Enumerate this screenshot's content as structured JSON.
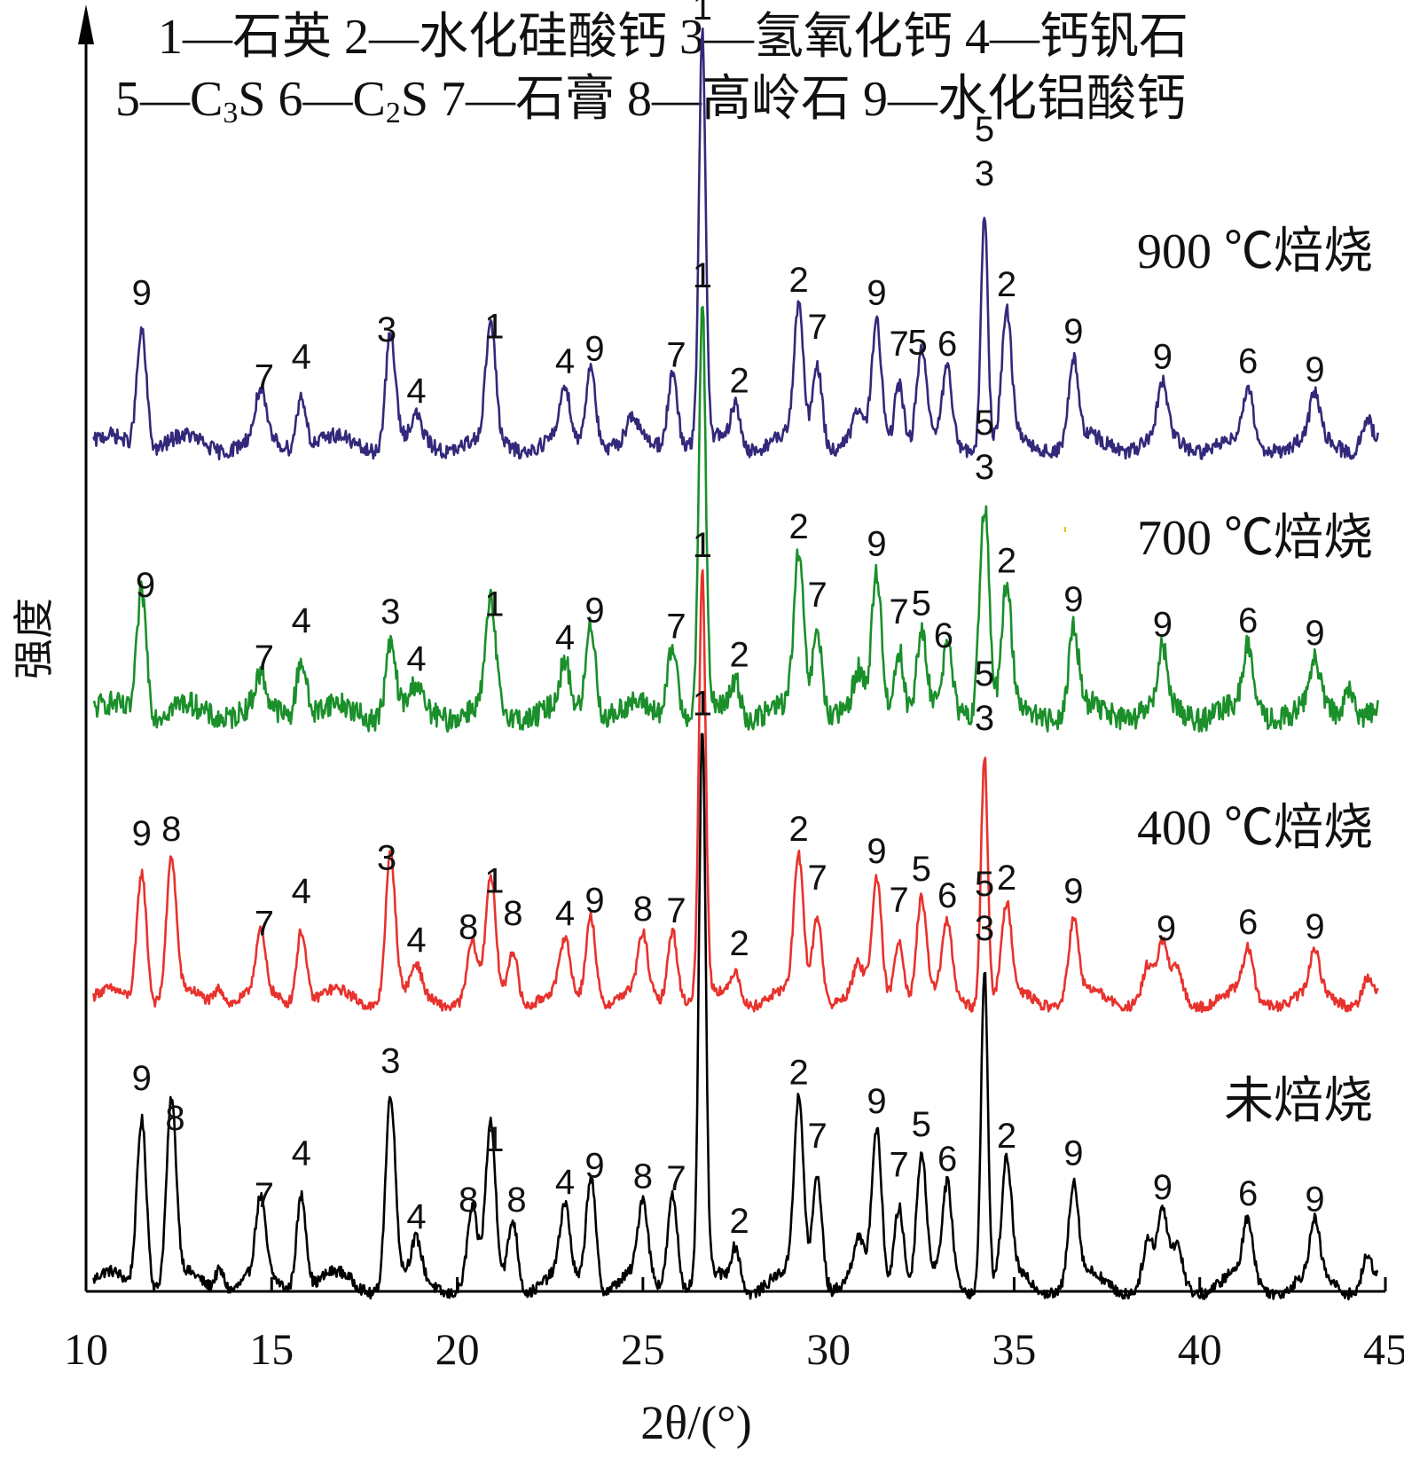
{
  "chart_data": {
    "type": "line",
    "legend_line1": [
      "1—石英",
      "2—水化硅酸钙",
      "3—氢氧化钙",
      "4—钙钒石"
    ],
    "legend_line2_parts": [
      {
        "num": "5—C",
        "sub": "3",
        "tail": "S"
      },
      {
        "num": "6—C",
        "sub": "2",
        "tail": "S"
      }
    ],
    "legend_line2_rest": [
      "7—石膏",
      "8—高岭石",
      "9—水化铝酸钙"
    ],
    "xlabel": "2θ/(°)",
    "ylabel": "强度",
    "xlim": [
      10,
      45
    ],
    "xticks": [
      "10",
      "15",
      "20",
      "25",
      "30",
      "35",
      "40",
      "45"
    ],
    "y_axis_ticks": false,
    "series": [
      {
        "name": "未焙烧",
        "color": "#000000",
        "peaks": [
          {
            "x": 11.5,
            "h": 0.3
          },
          {
            "x": 12.3,
            "h": 0.31
          },
          {
            "x": 13.6,
            "h": 0.04
          },
          {
            "x": 14.7,
            "h": 0.13
          },
          {
            "x": 15.8,
            "h": 0.17
          },
          {
            "x": 18.2,
            "h": 0.33
          },
          {
            "x": 18.9,
            "h": 0.06
          },
          {
            "x": 20.4,
            "h": 0.12
          },
          {
            "x": 20.9,
            "h": 0.26
          },
          {
            "x": 21.5,
            "h": 0.12
          },
          {
            "x": 22.9,
            "h": 0.12
          },
          {
            "x": 23.6,
            "h": 0.2
          },
          {
            "x": 25.0,
            "h": 0.13
          },
          {
            "x": 25.8,
            "h": 0.17
          },
          {
            "x": 26.6,
            "h": 0.95
          },
          {
            "x": 27.5,
            "h": 0.07
          },
          {
            "x": 29.2,
            "h": 0.31
          },
          {
            "x": 29.7,
            "h": 0.2
          },
          {
            "x": 30.8,
            "h": 0.06
          },
          {
            "x": 31.3,
            "h": 0.26
          },
          {
            "x": 31.9,
            "h": 0.15
          },
          {
            "x": 32.5,
            "h": 0.22
          },
          {
            "x": 33.2,
            "h": 0.16
          },
          {
            "x": 34.2,
            "h": 0.56
          },
          {
            "x": 34.8,
            "h": 0.2
          },
          {
            "x": 36.6,
            "h": 0.17
          },
          {
            "x": 38.6,
            "h": 0.07
          },
          {
            "x": 39.0,
            "h": 0.11
          },
          {
            "x": 39.4,
            "h": 0.06
          },
          {
            "x": 41.3,
            "h": 0.1
          },
          {
            "x": 43.1,
            "h": 0.09
          },
          {
            "x": 44.5,
            "h": 0.05
          }
        ],
        "noise": 0.01,
        "series_label": "未焙烧",
        "peak_labels": [
          {
            "x": 11.5,
            "t": "9"
          },
          {
            "x": 12.4,
            "t": "8"
          },
          {
            "x": 14.8,
            "t": "7"
          },
          {
            "x": 15.8,
            "t": "4"
          },
          {
            "x": 18.2,
            "t": "3"
          },
          {
            "x": 18.9,
            "t": "4"
          },
          {
            "x": 20.3,
            "t": "8"
          },
          {
            "x": 21.0,
            "t": "1"
          },
          {
            "x": 21.6,
            "t": "8"
          },
          {
            "x": 22.9,
            "t": "4"
          },
          {
            "x": 23.7,
            "t": "9"
          },
          {
            "x": 25.0,
            "t": "8"
          },
          {
            "x": 25.9,
            "t": "7"
          },
          {
            "x": 26.6,
            "t": "1"
          },
          {
            "x": 27.6,
            "t": "2"
          },
          {
            "x": 29.2,
            "t": "2"
          },
          {
            "x": 29.7,
            "t": "7"
          },
          {
            "x": 31.3,
            "t": "9"
          },
          {
            "x": 31.9,
            "t": "7"
          },
          {
            "x": 32.5,
            "t": "5"
          },
          {
            "x": 33.2,
            "t": "6"
          },
          {
            "x": 34.2,
            "t": "5"
          },
          {
            "x": 34.2,
            "t": "3"
          },
          {
            "x": 34.8,
            "t": "2"
          },
          {
            "x": 36.6,
            "t": "9"
          },
          {
            "x": 39.0,
            "t": "9"
          },
          {
            "x": 41.3,
            "t": "6"
          },
          {
            "x": 43.1,
            "t": "9"
          }
        ]
      },
      {
        "name": "400 ℃焙烧",
        "color": "#e8322d",
        "peaks": [
          {
            "x": 11.5,
            "h": 0.3
          },
          {
            "x": 12.3,
            "h": 0.31
          },
          {
            "x": 13.6,
            "h": 0.04
          },
          {
            "x": 14.7,
            "h": 0.13
          },
          {
            "x": 15.8,
            "h": 0.17
          },
          {
            "x": 18.2,
            "h": 0.33
          },
          {
            "x": 18.9,
            "h": 0.06
          },
          {
            "x": 20.4,
            "h": 0.12
          },
          {
            "x": 20.9,
            "h": 0.26
          },
          {
            "x": 21.5,
            "h": 0.12
          },
          {
            "x": 22.9,
            "h": 0.12
          },
          {
            "x": 23.6,
            "h": 0.2
          },
          {
            "x": 25.0,
            "h": 0.13
          },
          {
            "x": 25.8,
            "h": 0.17
          },
          {
            "x": 26.6,
            "h": 0.95
          },
          {
            "x": 27.5,
            "h": 0.07
          },
          {
            "x": 29.2,
            "h": 0.31
          },
          {
            "x": 29.7,
            "h": 0.2
          },
          {
            "x": 30.8,
            "h": 0.06
          },
          {
            "x": 31.3,
            "h": 0.26
          },
          {
            "x": 31.9,
            "h": 0.15
          },
          {
            "x": 32.5,
            "h": 0.22
          },
          {
            "x": 33.2,
            "h": 0.16
          },
          {
            "x": 34.2,
            "h": 0.56
          },
          {
            "x": 34.8,
            "h": 0.2
          },
          {
            "x": 36.6,
            "h": 0.17
          },
          {
            "x": 38.6,
            "h": 0.07
          },
          {
            "x": 39.0,
            "h": 0.11
          },
          {
            "x": 39.4,
            "h": 0.06
          },
          {
            "x": 41.3,
            "h": 0.1
          },
          {
            "x": 43.1,
            "h": 0.09
          },
          {
            "x": 44.5,
            "h": 0.05
          }
        ],
        "noise": 0.012,
        "series_label": "400 ℃焙烧",
        "peak_labels": [
          {
            "x": 11.5,
            "t": "9"
          },
          {
            "x": 12.3,
            "t": "8"
          },
          {
            "x": 14.8,
            "t": "7"
          },
          {
            "x": 15.8,
            "t": "4"
          },
          {
            "x": 18.1,
            "t": "3"
          },
          {
            "x": 18.9,
            "t": "4"
          },
          {
            "x": 20.3,
            "t": "8"
          },
          {
            "x": 21.0,
            "t": "1"
          },
          {
            "x": 21.5,
            "t": "8"
          },
          {
            "x": 22.9,
            "t": "4"
          },
          {
            "x": 23.7,
            "t": "9"
          },
          {
            "x": 25.0,
            "t": "8"
          },
          {
            "x": 25.9,
            "t": "7"
          },
          {
            "x": 26.6,
            "t": "1"
          },
          {
            "x": 27.6,
            "t": "2"
          },
          {
            "x": 29.2,
            "t": "2"
          },
          {
            "x": 29.7,
            "t": "7"
          },
          {
            "x": 31.3,
            "t": "9"
          },
          {
            "x": 31.9,
            "t": "7"
          },
          {
            "x": 32.5,
            "t": "5"
          },
          {
            "x": 33.2,
            "t": "6"
          },
          {
            "x": 34.2,
            "t": "5"
          },
          {
            "x": 34.2,
            "t": "3"
          },
          {
            "x": 34.8,
            "t": "2"
          },
          {
            "x": 36.6,
            "t": "9"
          },
          {
            "x": 39.1,
            "t": "9"
          },
          {
            "x": 41.3,
            "t": "6"
          },
          {
            "x": 43.1,
            "t": "9"
          }
        ]
      },
      {
        "name": "700 ℃焙烧",
        "color": "#1a8f2a",
        "peaks": [
          {
            "x": 11.5,
            "h": 0.3
          },
          {
            "x": 14.7,
            "h": 0.07
          },
          {
            "x": 15.8,
            "h": 0.14
          },
          {
            "x": 18.2,
            "h": 0.16
          },
          {
            "x": 18.9,
            "h": 0.05
          },
          {
            "x": 20.9,
            "h": 0.24
          },
          {
            "x": 22.9,
            "h": 0.1
          },
          {
            "x": 23.6,
            "h": 0.22
          },
          {
            "x": 25.8,
            "h": 0.17
          },
          {
            "x": 26.6,
            "h": 0.95
          },
          {
            "x": 27.5,
            "h": 0.08
          },
          {
            "x": 29.2,
            "h": 0.36
          },
          {
            "x": 29.7,
            "h": 0.2
          },
          {
            "x": 30.8,
            "h": 0.08
          },
          {
            "x": 31.3,
            "h": 0.32
          },
          {
            "x": 31.9,
            "h": 0.16
          },
          {
            "x": 32.5,
            "h": 0.18
          },
          {
            "x": 33.2,
            "h": 0.14
          },
          {
            "x": 34.2,
            "h": 0.5
          },
          {
            "x": 34.8,
            "h": 0.28
          },
          {
            "x": 36.6,
            "h": 0.19
          },
          {
            "x": 39.0,
            "h": 0.13
          },
          {
            "x": 41.3,
            "h": 0.14
          },
          {
            "x": 43.1,
            "h": 0.11
          },
          {
            "x": 44.0,
            "h": 0.07
          }
        ],
        "noise": 0.028,
        "series_label": "700 ℃焙烧",
        "peak_labels": [
          {
            "x": 11.6,
            "t": "9"
          },
          {
            "x": 14.8,
            "t": "7"
          },
          {
            "x": 15.8,
            "t": "4"
          },
          {
            "x": 18.2,
            "t": "3"
          },
          {
            "x": 18.9,
            "t": "4"
          },
          {
            "x": 21.0,
            "t": "1"
          },
          {
            "x": 22.9,
            "t": "4"
          },
          {
            "x": 23.7,
            "t": "9"
          },
          {
            "x": 25.9,
            "t": "7"
          },
          {
            "x": 26.6,
            "t": "1"
          },
          {
            "x": 27.6,
            "t": "2"
          },
          {
            "x": 29.2,
            "t": "2"
          },
          {
            "x": 29.7,
            "t": "7"
          },
          {
            "x": 31.3,
            "t": "9"
          },
          {
            "x": 31.9,
            "t": "7"
          },
          {
            "x": 32.5,
            "t": "5"
          },
          {
            "x": 33.1,
            "t": "6"
          },
          {
            "x": 34.2,
            "t": "5"
          },
          {
            "x": 34.2,
            "t": "3"
          },
          {
            "x": 34.8,
            "t": "2"
          },
          {
            "x": 36.6,
            "t": "9"
          },
          {
            "x": 39.0,
            "t": "9"
          },
          {
            "x": 41.3,
            "t": "6"
          },
          {
            "x": 43.1,
            "t": "9"
          }
        ]
      },
      {
        "name": "900 ℃焙烧",
        "color": "#33297a",
        "peaks": [
          {
            "x": 11.5,
            "h": 0.28
          },
          {
            "x": 14.7,
            "h": 0.11
          },
          {
            "x": 15.8,
            "h": 0.13
          },
          {
            "x": 18.2,
            "h": 0.26
          },
          {
            "x": 18.9,
            "h": 0.05
          },
          {
            "x": 20.9,
            "h": 0.27
          },
          {
            "x": 22.9,
            "h": 0.12
          },
          {
            "x": 23.6,
            "h": 0.2
          },
          {
            "x": 24.7,
            "h": 0.05
          },
          {
            "x": 25.8,
            "h": 0.18
          },
          {
            "x": 26.6,
            "h": 0.95
          },
          {
            "x": 27.5,
            "h": 0.1
          },
          {
            "x": 29.2,
            "h": 0.31
          },
          {
            "x": 29.7,
            "h": 0.2
          },
          {
            "x": 30.8,
            "h": 0.06
          },
          {
            "x": 31.3,
            "h": 0.28
          },
          {
            "x": 31.9,
            "h": 0.16
          },
          {
            "x": 32.5,
            "h": 0.22
          },
          {
            "x": 33.2,
            "h": 0.16
          },
          {
            "x": 34.2,
            "h": 0.56
          },
          {
            "x": 34.8,
            "h": 0.3
          },
          {
            "x": 36.6,
            "h": 0.19
          },
          {
            "x": 39.0,
            "h": 0.13
          },
          {
            "x": 41.3,
            "h": 0.12
          },
          {
            "x": 43.1,
            "h": 0.1
          },
          {
            "x": 44.5,
            "h": 0.06
          }
        ],
        "noise": 0.018,
        "series_label": "900 ℃焙烧",
        "peak_labels": [
          {
            "x": 11.5,
            "t": "9"
          },
          {
            "x": 14.8,
            "t": "7"
          },
          {
            "x": 15.8,
            "t": "4"
          },
          {
            "x": 18.1,
            "t": "3"
          },
          {
            "x": 18.9,
            "t": "4"
          },
          {
            "x": 21.0,
            "t": "1"
          },
          {
            "x": 22.9,
            "t": "4"
          },
          {
            "x": 23.7,
            "t": "9"
          },
          {
            "x": 25.9,
            "t": "7"
          },
          {
            "x": 26.6,
            "t": "1"
          },
          {
            "x": 27.6,
            "t": "2"
          },
          {
            "x": 29.2,
            "t": "2"
          },
          {
            "x": 29.7,
            "t": "7"
          },
          {
            "x": 31.3,
            "t": "9"
          },
          {
            "x": 31.9,
            "t": "7"
          },
          {
            "x": 32.4,
            "t": "5"
          },
          {
            "x": 33.2,
            "t": "6"
          },
          {
            "x": 34.2,
            "t": "5"
          },
          {
            "x": 34.2,
            "t": "3"
          },
          {
            "x": 34.8,
            "t": "2"
          },
          {
            "x": 36.6,
            "t": "9"
          },
          {
            "x": 39.0,
            "t": "9"
          },
          {
            "x": 41.3,
            "t": "6"
          },
          {
            "x": 43.1,
            "t": "9"
          }
        ]
      }
    ]
  }
}
